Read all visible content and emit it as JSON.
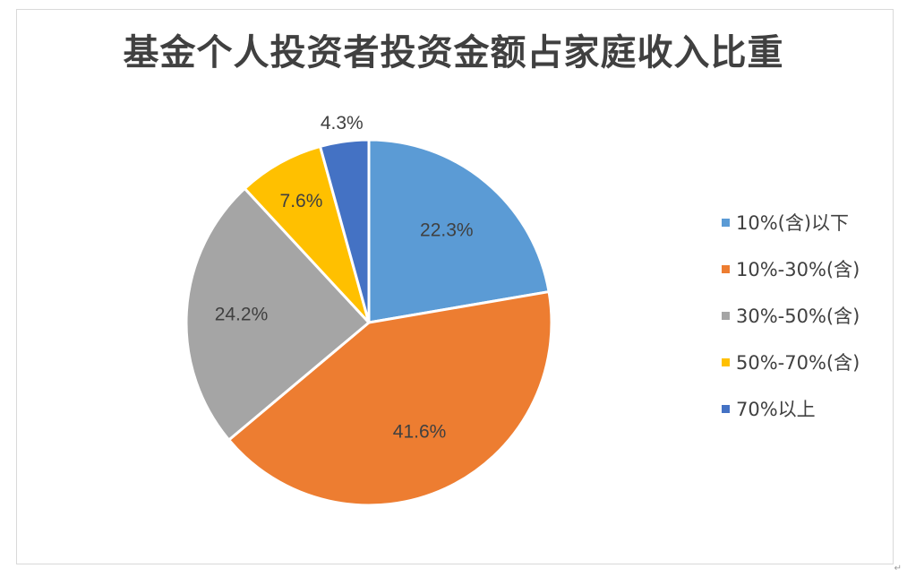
{
  "chart_data": {
    "type": "pie",
    "title": "基金个人投资者投资金额占家庭收入比重",
    "categories": [
      "10%(含)以下",
      "10%-30%(含)",
      "30%-50%(含)",
      "50%-70%(含)",
      "70%以上"
    ],
    "values": [
      22.3,
      41.6,
      24.2,
      7.6,
      4.3
    ],
    "data_labels": [
      "22.3%",
      "41.6%",
      "24.2%",
      "7.6%",
      "4.3%"
    ],
    "colors": [
      "#5B9BD5",
      "#ED7D31",
      "#A5A5A5",
      "#FFC000",
      "#4472C4"
    ],
    "start_angle": "12 o'clock",
    "direction": "clockwise",
    "legend_position": "right"
  }
}
